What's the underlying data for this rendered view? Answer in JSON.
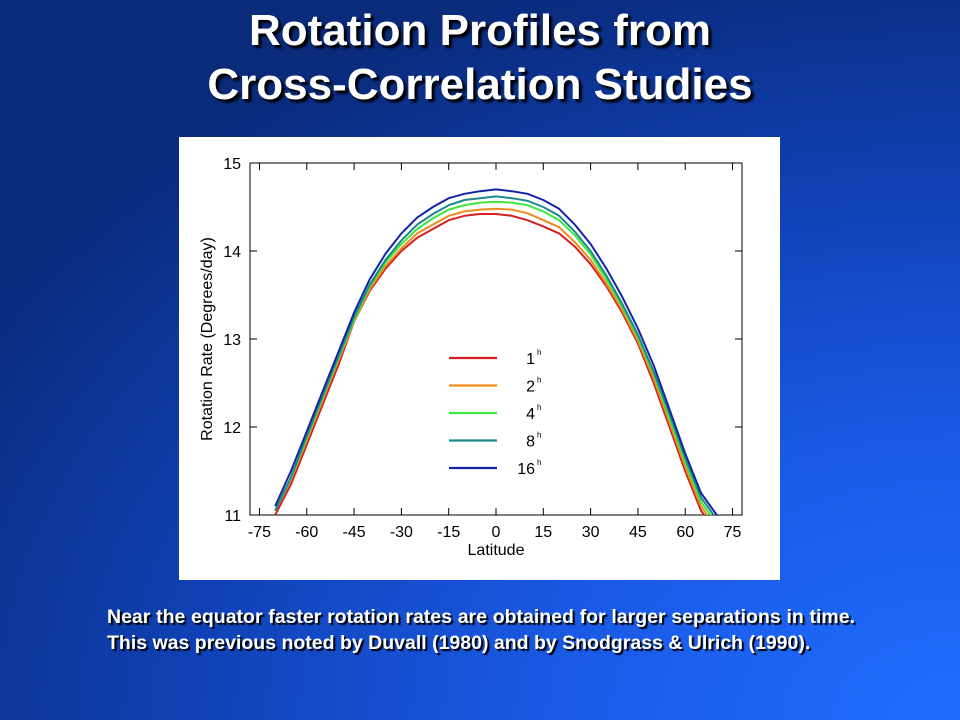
{
  "slide": {
    "title_line1": "Rotation Profiles from",
    "title_line2": "Cross-Correlation Studies",
    "caption": "Near the equator faster rotation rates are obtained for larger separations in time. This was previous noted by Duvall (1980) and by Snodgrass & Ulrich (1990)."
  },
  "chart_data": {
    "type": "line",
    "xlabel": "Latitude",
    "ylabel": "Rotation Rate (Degrees/day)",
    "xlim": [
      -78,
      78
    ],
    "ylim": [
      11,
      15
    ],
    "xticks": [
      -75,
      -60,
      -45,
      -30,
      -15,
      0,
      15,
      30,
      45,
      60,
      75
    ],
    "yticks": [
      11,
      12,
      13,
      14,
      15
    ],
    "grid": false,
    "legend_position": "center",
    "x": [
      -70,
      -65,
      -60,
      -55,
      -50,
      -45,
      -40,
      -35,
      -30,
      -25,
      -20,
      -15,
      -10,
      -5,
      0,
      5,
      10,
      15,
      20,
      25,
      30,
      35,
      40,
      45,
      50,
      55,
      60,
      65,
      70
    ],
    "series": [
      {
        "name": "1",
        "superscript": "h",
        "color": "#d42020",
        "values": [
          11.0,
          11.35,
          11.8,
          12.25,
          12.7,
          13.2,
          13.55,
          13.8,
          14.0,
          14.15,
          14.25,
          14.35,
          14.4,
          14.42,
          14.42,
          14.4,
          14.35,
          14.28,
          14.2,
          14.05,
          13.85,
          13.6,
          13.3,
          12.95,
          12.5,
          12.0,
          11.5,
          11.05,
          10.8
        ]
      },
      {
        "name": "2",
        "superscript": "h",
        "color": "#f08c1e",
        "values": [
          11.05,
          11.4,
          11.85,
          12.3,
          12.75,
          13.2,
          13.57,
          13.83,
          14.03,
          14.2,
          14.3,
          14.4,
          14.45,
          14.47,
          14.48,
          14.47,
          14.43,
          14.35,
          14.27,
          14.1,
          13.9,
          13.63,
          13.33,
          12.98,
          12.55,
          12.05,
          11.55,
          11.1,
          10.85
        ]
      },
      {
        "name": "4",
        "superscript": "h",
        "color": "#3ee63e",
        "values": [
          11.05,
          11.42,
          11.88,
          12.33,
          12.78,
          13.22,
          13.6,
          13.87,
          14.08,
          14.25,
          14.37,
          14.47,
          14.52,
          14.55,
          14.56,
          14.55,
          14.52,
          14.45,
          14.35,
          14.18,
          13.96,
          13.68,
          13.37,
          13.02,
          12.6,
          12.1,
          11.6,
          11.15,
          10.9
        ]
      },
      {
        "name": "8",
        "superscript": "h",
        "color": "#1a8a86",
        "values": [
          11.05,
          11.43,
          11.9,
          12.35,
          12.8,
          13.25,
          13.62,
          13.9,
          14.12,
          14.3,
          14.42,
          14.52,
          14.58,
          14.6,
          14.62,
          14.6,
          14.57,
          14.5,
          14.4,
          14.22,
          14.0,
          13.72,
          13.4,
          13.05,
          12.63,
          12.15,
          11.65,
          11.2,
          10.95
        ]
      },
      {
        "name": "16",
        "superscript": "h",
        "color": "#1424a8",
        "values": [
          11.1,
          11.5,
          11.95,
          12.4,
          12.85,
          13.3,
          13.68,
          13.97,
          14.2,
          14.38,
          14.5,
          14.6,
          14.65,
          14.68,
          14.7,
          14.68,
          14.65,
          14.58,
          14.48,
          14.3,
          14.08,
          13.8,
          13.48,
          13.12,
          12.7,
          12.2,
          11.7,
          11.25,
          11.0
        ]
      }
    ]
  }
}
